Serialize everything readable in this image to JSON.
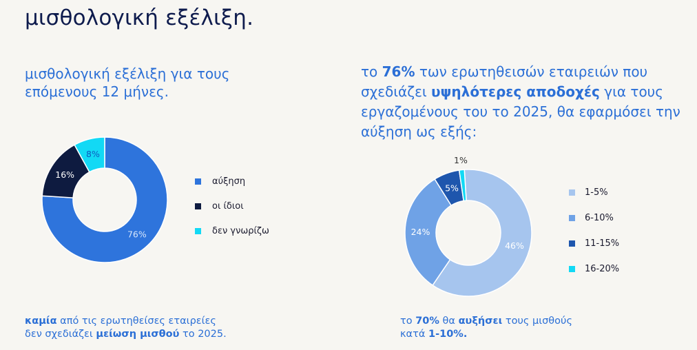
{
  "page": {
    "title": "μισθολογική εξέλιξη."
  },
  "left": {
    "heading": "μισθολογική εξέλιξη για τους\nεπόμενους 12 μήνες.",
    "footer": {
      "line1": [
        {
          "text": "καμία",
          "bold": true
        },
        {
          "text": " από τις ερωτηθείσες εταιρείες",
          "bold": false
        }
      ],
      "line2": [
        {
          "text": "δεν σχεδιάζει ",
          "bold": false
        },
        {
          "text": "μείωση μισθού",
          "bold": true
        },
        {
          "text": " το 2025.",
          "bold": false
        }
      ]
    }
  },
  "right": {
    "heading_parts": [
      {
        "text": "το ",
        "bold": false
      },
      {
        "text": "76%",
        "bold": true
      },
      {
        "text": " των ερωτηθεισών εταιρειών που σχεδιάζει ",
        "bold": false
      },
      {
        "text": "υψηλότερες αποδοχές",
        "bold": true
      },
      {
        "text": " για τους εργαζομένους του το 2025, θα εφαρμόσει την αύξηση ως εξής:",
        "bold": false
      }
    ],
    "footer": {
      "line1": [
        {
          "text": "το ",
          "bold": false
        },
        {
          "text": "70%",
          "bold": true
        },
        {
          "text": " θα ",
          "bold": false
        },
        {
          "text": "αυξήσει",
          "bold": true
        },
        {
          "text": " τους μισθούς",
          "bold": false
        }
      ],
      "line2": [
        {
          "text": "κατά ",
          "bold": false
        },
        {
          "text": "1-10%.",
          "bold": true
        }
      ]
    }
  },
  "chart_data": [
    {
      "type": "pie",
      "donut": true,
      "title": "",
      "legend_position": "right",
      "slices": [
        {
          "label": "αύξηση",
          "value": 76,
          "display": "76%",
          "color": "#2e74dc",
          "label_color": "#d6e6fb"
        },
        {
          "label": "οι ίδιοι",
          "value": 16,
          "display": "16%",
          "color": "#0e1b40",
          "label_color": "#ffffff"
        },
        {
          "label": "δεν γνωρίζω",
          "value": 8,
          "display": "8%",
          "color": "#12d9f5",
          "label_color": "#0e5bbf"
        }
      ]
    },
    {
      "type": "pie",
      "donut": true,
      "title": "",
      "legend_position": "right",
      "slices": [
        {
          "label": "1-5%",
          "value": 46,
          "display": "46%",
          "color": "#a6c5ee",
          "label_color": "#ffffff"
        },
        {
          "label": "6-10%",
          "value": 24,
          "display": "24%",
          "color": "#6fa2e6",
          "label_color": "#ffffff"
        },
        {
          "label": "11-15%",
          "value": 5,
          "display": "5%",
          "color": "#1e56ad",
          "label_color": "#ffffff"
        },
        {
          "label": "16-20%",
          "value": 1,
          "display": "1%",
          "color": "#12d9f5",
          "label_color": "#333333"
        }
      ]
    }
  ]
}
